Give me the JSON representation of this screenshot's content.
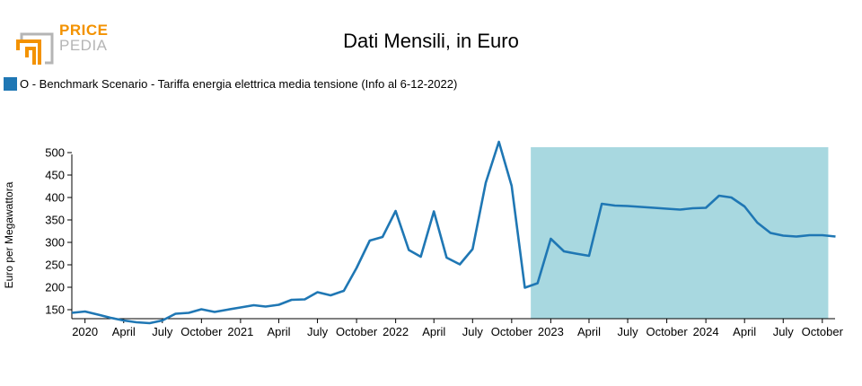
{
  "header": {
    "title": "Dati Mensili, in Euro",
    "logo_word1": "PRICE",
    "logo_word2": "PEDIA"
  },
  "colors": {
    "series": "#1f77b4",
    "highlight": "#a8d8e0",
    "logo_orange": "#f39200",
    "logo_gray": "#b5b5b5"
  },
  "chart_data": {
    "type": "line",
    "legend": "top-left",
    "grid": false,
    "ylabel": "Euro per Megawattora",
    "ylim": [
      130,
      530
    ],
    "yticks": [
      150,
      200,
      250,
      300,
      350,
      400,
      450,
      500
    ],
    "xlim": [
      "2019-12-01",
      "2024-10-31"
    ],
    "xticks": [
      {
        "date": "2020-01-01",
        "label": "2020"
      },
      {
        "date": "2020-04-01",
        "label": "April"
      },
      {
        "date": "2020-07-01",
        "label": "July"
      },
      {
        "date": "2020-10-01",
        "label": "October"
      },
      {
        "date": "2021-01-01",
        "label": "2021"
      },
      {
        "date": "2021-04-01",
        "label": "April"
      },
      {
        "date": "2021-07-01",
        "label": "July"
      },
      {
        "date": "2021-10-01",
        "label": "October"
      },
      {
        "date": "2022-01-01",
        "label": "2022"
      },
      {
        "date": "2022-04-01",
        "label": "April"
      },
      {
        "date": "2022-07-01",
        "label": "July"
      },
      {
        "date": "2022-10-01",
        "label": "October"
      },
      {
        "date": "2023-01-01",
        "label": "2023"
      },
      {
        "date": "2023-04-01",
        "label": "April"
      },
      {
        "date": "2023-07-01",
        "label": "July"
      },
      {
        "date": "2023-10-01",
        "label": "October"
      },
      {
        "date": "2024-01-01",
        "label": "2024"
      },
      {
        "date": "2024-04-01",
        "label": "April"
      },
      {
        "date": "2024-07-01",
        "label": "July"
      },
      {
        "date": "2024-10-01",
        "label": "October"
      }
    ],
    "highlight_range": [
      "2022-11-15",
      "2024-10-15"
    ],
    "series": [
      {
        "name": "O - Benchmark Scenario - Tariffa energia elettrica media tensione (Info al 6-12-2022)",
        "x": [
          "2019-12-01",
          "2020-01-01",
          "2020-02-01",
          "2020-03-01",
          "2020-04-01",
          "2020-05-01",
          "2020-06-01",
          "2020-07-01",
          "2020-08-01",
          "2020-09-01",
          "2020-10-01",
          "2020-11-01",
          "2020-12-01",
          "2021-01-01",
          "2021-02-01",
          "2021-03-01",
          "2021-04-01",
          "2021-05-01",
          "2021-06-01",
          "2021-07-01",
          "2021-08-01",
          "2021-09-01",
          "2021-10-01",
          "2021-11-01",
          "2021-12-01",
          "2022-01-01",
          "2022-02-01",
          "2022-03-01",
          "2022-04-01",
          "2022-05-01",
          "2022-06-01",
          "2022-07-01",
          "2022-08-01",
          "2022-09-01",
          "2022-10-01",
          "2022-11-01",
          "2022-12-01",
          "2023-01-01",
          "2023-02-01",
          "2023-03-01",
          "2023-04-01",
          "2023-05-01",
          "2023-06-01",
          "2023-07-01",
          "2023-08-01",
          "2023-09-01",
          "2023-10-01",
          "2023-11-01",
          "2023-12-01",
          "2024-01-01",
          "2024-02-01",
          "2024-03-01",
          "2024-04-01",
          "2024-05-01",
          "2024-06-01",
          "2024-07-01",
          "2024-08-01",
          "2024-09-01",
          "2024-10-01",
          "2024-11-01"
        ],
        "values": [
          143,
          146,
          139,
          132,
          126,
          122,
          120,
          126,
          141,
          143,
          151,
          145,
          150,
          155,
          160,
          157,
          161,
          172,
          173,
          189,
          182,
          192,
          243,
          304,
          312,
          370,
          283,
          268,
          369,
          266,
          251,
          285,
          433,
          524,
          426,
          199,
          209,
          308,
          280,
          275,
          270,
          386,
          382,
          381,
          379,
          377,
          375,
          373,
          376,
          377,
          404,
          400,
          380,
          344,
          321,
          315,
          313,
          316,
          316,
          313
        ]
      }
    ]
  }
}
